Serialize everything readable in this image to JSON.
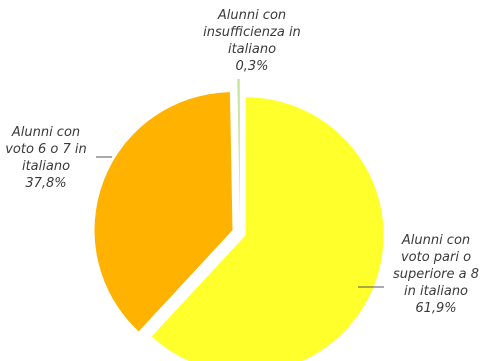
{
  "chart_data": {
    "type": "pie",
    "title": "",
    "slices": [
      {
        "label_lines": [
          "Alunni con",
          "voto pari o",
          "superiore a 8",
          "in italiano"
        ],
        "value_text": "61,9%",
        "value": 61.9,
        "color": "#ffff2b"
      },
      {
        "label_lines": [
          "Alunni con",
          "voto 6 o 7 in",
          "italiano"
        ],
        "value_text": "37,8%",
        "value": 37.8,
        "color": "#ffb300"
      },
      {
        "label_lines": [
          "Alunni con",
          "insufficienza in",
          "italiano"
        ],
        "value_text": "0,3%",
        "value": 0.3,
        "color": "#c8e6a0"
      }
    ],
    "legend": "none",
    "data_labels": "outside"
  }
}
